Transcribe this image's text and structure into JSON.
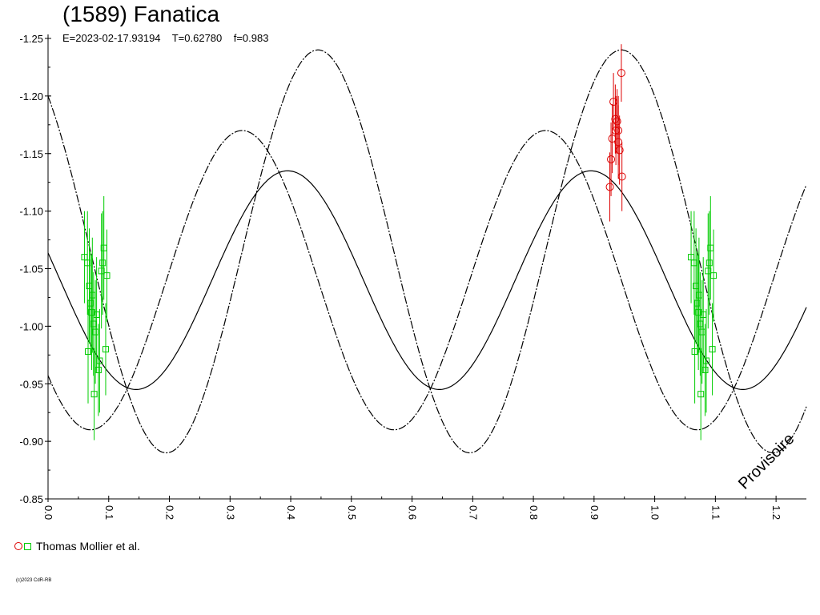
{
  "header": {
    "title": "(1589) Fanatica",
    "subtitle": "E=2023-02-17.93194    T=0.62780    f=0.983"
  },
  "legend": {
    "label": "Thomas Mollier et al."
  },
  "watermark": "Provisoire",
  "copyright": "(c)2023 CdR-RB",
  "colors": {
    "series_red": "#dd0000",
    "series_green": "#00cc00",
    "curve": "#000000"
  },
  "chart_data": {
    "type": "scatter",
    "title": "(1589) Fanatica",
    "xlim": [
      0.0,
      1.25
    ],
    "ylim": [
      -1.25,
      -0.85
    ],
    "y_inverted": true,
    "x_ticks": [
      "0.0",
      "0.1",
      "0.2",
      "0.3",
      "0.4",
      "0.5",
      "0.6",
      "0.7",
      "0.8",
      "0.9",
      "1.0",
      "1.1",
      "1.2"
    ],
    "x_tick_values": [
      0.0,
      0.1,
      0.2,
      0.3,
      0.4,
      0.5,
      0.6,
      0.7,
      0.8,
      0.9,
      1.0,
      1.1,
      1.2
    ],
    "y_ticks": [
      "-1.25",
      "-1.20",
      "-1.15",
      "-1.10",
      "-1.05",
      "-1.00",
      "-0.95",
      "-0.90",
      "-0.85"
    ],
    "y_tick_values": [
      -1.25,
      -1.2,
      -1.15,
      -1.1,
      -1.05,
      -1.0,
      -0.95,
      -0.9,
      -0.85
    ],
    "grid": false,
    "model_curves": [
      {
        "style": "solid",
        "mean": -1.04,
        "amp": 0.095,
        "phase": 0.145
      },
      {
        "style": "dashed",
        "mean": -1.065,
        "amp": 0.175,
        "phase": 0.195
      },
      {
        "style": "dashed",
        "mean": -1.04,
        "amp": 0.13,
        "phase": 0.07
      }
    ],
    "series": [
      {
        "name": "Thomas Mollier et al.",
        "marker": "circle",
        "color": "#dd0000",
        "points": [
          {
            "x": 0.932,
            "y": -1.195,
            "err": 0.025
          },
          {
            "x": 0.935,
            "y": -1.18,
            "err": 0.03
          },
          {
            "x": 0.938,
            "y": -1.178,
            "err": 0.028
          },
          {
            "x": 0.936,
            "y": -1.17,
            "err": 0.03
          },
          {
            "x": 0.94,
            "y": -1.16,
            "err": 0.032
          },
          {
            "x": 0.942,
            "y": -1.153,
            "err": 0.03
          },
          {
            "x": 0.93,
            "y": -1.163,
            "err": 0.03
          },
          {
            "x": 0.928,
            "y": -1.145,
            "err": 0.032
          },
          {
            "x": 0.945,
            "y": -1.22,
            "err": 0.025
          },
          {
            "x": 0.946,
            "y": -1.13,
            "err": 0.03
          },
          {
            "x": 0.926,
            "y": -1.121,
            "err": 0.03
          },
          {
            "x": 0.94,
            "y": -1.17,
            "err": 0.03
          }
        ]
      },
      {
        "name": "Thomas Mollier et al.",
        "marker": "square",
        "color": "#00cc00",
        "points": [
          {
            "x": 0.06,
            "y": -1.06,
            "err": 0.04
          },
          {
            "x": 0.065,
            "y": -1.055,
            "err": 0.045
          },
          {
            "x": 0.068,
            "y": -1.035,
            "err": 0.05
          },
          {
            "x": 0.07,
            "y": -1.02,
            "err": 0.045
          },
          {
            "x": 0.072,
            "y": -1.012,
            "err": 0.05
          },
          {
            "x": 0.075,
            "y": -1.002,
            "err": 0.045
          },
          {
            "x": 0.078,
            "y": -0.995,
            "err": 0.045
          },
          {
            "x": 0.08,
            "y": -1.01,
            "err": 0.05
          },
          {
            "x": 0.083,
            "y": -0.962,
            "err": 0.04
          },
          {
            "x": 0.085,
            "y": -0.97,
            "err": 0.045
          },
          {
            "x": 0.088,
            "y": -1.048,
            "err": 0.05
          },
          {
            "x": 0.09,
            "y": -1.055,
            "err": 0.045
          },
          {
            "x": 0.092,
            "y": -1.068,
            "err": 0.045
          },
          {
            "x": 0.095,
            "y": -0.98,
            "err": 0.04
          },
          {
            "x": 0.097,
            "y": -1.044,
            "err": 0.04
          },
          {
            "x": 0.066,
            "y": -0.978,
            "err": 0.045
          },
          {
            "x": 0.076,
            "y": -0.941,
            "err": 0.04
          },
          {
            "x": 0.073,
            "y": -1.027,
            "err": 0.05
          }
        ]
      }
    ]
  }
}
